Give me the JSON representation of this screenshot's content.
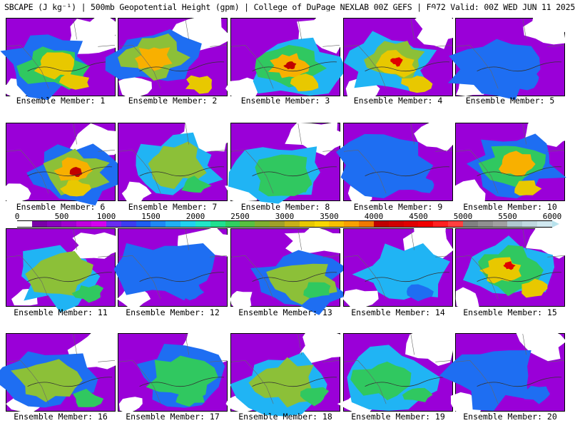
{
  "title": "SBCAPE (J kg⁻¹) | 500mb Geopotential Height (gpm) | College of DuPage NEXLAB 00Z GEFS | F072 Valid: 00Z WED JUN 11 2025",
  "members": [
    "Ensemble Member: 1",
    "Ensemble Member: 2",
    "Ensemble Member: 3",
    "Ensemble Member: 4",
    "Ensemble Member: 5",
    "Ensemble Member: 6",
    "Ensemble Member: 7",
    "Ensemble Member: 8",
    "Ensemble Member: 9",
    "Ensemble Member: 10",
    "Ensemble Member: 11",
    "Ensemble Member: 12",
    "Ensemble Member: 13",
    "Ensemble Member: 14",
    "Ensemble Member: 15",
    "Ensemble Member: 16",
    "Ensemble Member: 17",
    "Ensemble Member: 18",
    "Ensemble Member: 19",
    "Ensemble Member: 20"
  ],
  "colorbar": {
    "ticks": [
      "0",
      "500",
      "1000",
      "1500",
      "2000",
      "2500",
      "3000",
      "3500",
      "4000",
      "4500",
      "5000",
      "5500",
      "6000"
    ],
    "colors": [
      "#ffffff",
      "#7a00a8",
      "#8a00c0",
      "#a000d0",
      "#c000e0",
      "#d400f0",
      "#6a2cf0",
      "#3c3cf0",
      "#1e5ef2",
      "#1e88f4",
      "#20b0f4",
      "#20d2f0",
      "#20e8c8",
      "#20e090",
      "#30d060",
      "#58c040",
      "#80b030",
      "#a0a028",
      "#c8b018",
      "#e8c800",
      "#f8d800",
      "#f8c000",
      "#f8a000",
      "#f07800",
      "#c00000",
      "#d00000",
      "#e00000",
      "#f00000",
      "#ff2020",
      "#ff4040",
      "#808080",
      "#909090",
      "#a0a0a0",
      "#b0c8d0",
      "#c0d8e0",
      "#d0e8f0"
    ]
  },
  "map_data": {
    "field": "SBCAPE",
    "units": "J kg⁻¹",
    "peak_levels_by_member": [
      4,
      4,
      5,
      5,
      2,
      5,
      3,
      3,
      2,
      4,
      3,
      2,
      3,
      2,
      5,
      3,
      3,
      3,
      3,
      2
    ]
  }
}
